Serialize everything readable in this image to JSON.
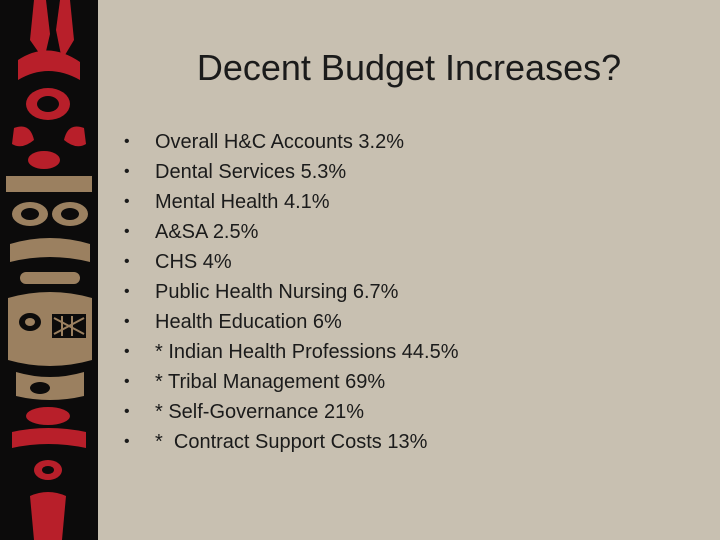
{
  "slide": {
    "title": "Decent Budget Increases?",
    "bullets": [
      "Overall H&C Accounts 3.2%",
      "Dental Services 5.3%",
      "Mental Health 4.1%",
      "A&SA 2.5%",
      "CHS 4%",
      "Public Health Nursing 6.7%",
      "Health Education 6%",
      "* Indian Health Professions 44.5%",
      "* Tribal Management 69%",
      "* Self-Governance 21%",
      "*  Contract Support Costs 13%"
    ],
    "bullet_marker": "•"
  },
  "colors": {
    "background": "#c8c0b1",
    "panel": "#0c0b0b",
    "totem_red": "#b81f2a",
    "totem_tan": "#9b8060",
    "text": "#1b1b1b"
  },
  "icons": {
    "decorative_panel": "northwest-coast-totem-art"
  }
}
